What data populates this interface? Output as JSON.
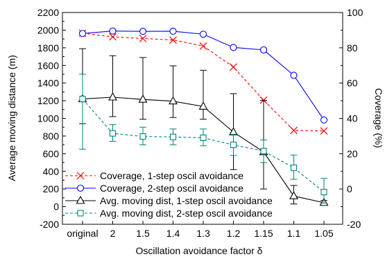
{
  "chart_data": {
    "type": "line",
    "xlabel": "Oscillation avoidance factor δ",
    "ylabel_left": "Average moving distance (m)",
    "ylabel_right": "Coverage (%)",
    "categories": [
      "original",
      "2",
      "1.5",
      "1.4",
      "1.3",
      "1.2",
      "1.15",
      "1.1",
      "1.05"
    ],
    "left_axis": {
      "min": -200,
      "max": 2200,
      "ticks": [
        -200,
        0,
        200,
        400,
        600,
        800,
        1000,
        1200,
        1400,
        1600,
        1800,
        2000,
        2200
      ]
    },
    "right_axis": {
      "min": -20,
      "max": 100,
      "ticks": [
        -20,
        0,
        20,
        40,
        60,
        80,
        100
      ]
    },
    "series": [
      {
        "name": "Coverage, 1-step oscil avoidance",
        "axis": "right",
        "color": "#ff0000",
        "line": "dashed",
        "marker": "x",
        "values": [
          88.3,
          86.2,
          85.3,
          84.4,
          81.0,
          69.1,
          50.3,
          33.2,
          32.9
        ]
      },
      {
        "name": "Coverage, 2-step oscil avoidance",
        "axis": "right",
        "color": "#0000ff",
        "line": "solid",
        "marker": "circle",
        "values": [
          88.1,
          89.5,
          89.3,
          89.4,
          87.7,
          80.2,
          78.8,
          64.4,
          39.1
        ]
      },
      {
        "name": "Avg. moving dist, 1-step oscil avoidance",
        "axis": "left",
        "color": "#000000",
        "line": "solid",
        "marker": "triangle",
        "values": [
          1220,
          1240,
          1215,
          1195,
          1135,
          845,
          620,
          120,
          45
        ],
        "error_low": [
          940,
          1020,
          990,
          1010,
          990,
          420,
          200,
          30,
          20
        ],
        "error_high": [
          1790,
          1710,
          1690,
          1595,
          1545,
          1280,
          1205,
          240,
          70
        ]
      },
      {
        "name": "Avg. moving dist, 2-step oscil avoidance",
        "axis": "left",
        "color": "#008080",
        "line": "dashed",
        "marker": "square",
        "values": [
          1220,
          830,
          795,
          790,
          780,
          700,
          630,
          440,
          165
        ],
        "error_low": [
          650,
          740,
          700,
          700,
          690,
          580,
          500,
          310,
          40
        ],
        "error_high": [
          1500,
          930,
          900,
          880,
          880,
          820,
          755,
          585,
          320
        ]
      }
    ],
    "legend_position": "bottom-left"
  }
}
